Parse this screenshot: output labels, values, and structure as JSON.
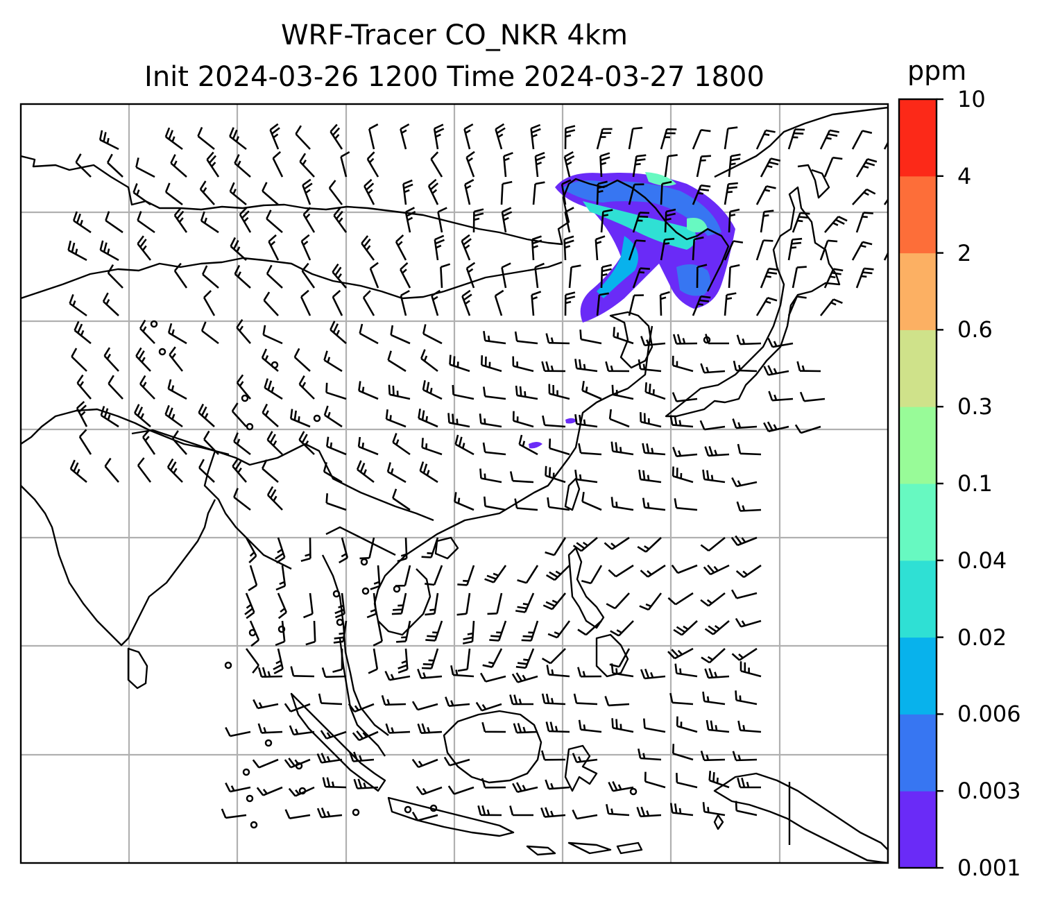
{
  "title": {
    "line1": "WRF-Tracer CO_NKR 4km",
    "line2": "Init 2024-03-26 1200 Time 2024-03-27 1800"
  },
  "colorbar": {
    "unit": "ppm",
    "levels": [
      "0.001",
      "0.003",
      "0.006",
      "0.02",
      "0.04",
      "0.1",
      "0.3",
      "0.6",
      "2",
      "4",
      "10"
    ],
    "colors": [
      "#6a2bf7",
      "#3776f2",
      "#08b2ec",
      "#2fe0d4",
      "#67f9c1",
      "#98fb98",
      "#cfe28a",
      "#fcb063",
      "#fd6e39",
      "#fc2918"
    ]
  },
  "map": {
    "gridlines": true,
    "coastline_color": "#000000",
    "gridline_color": "#b0b0b0"
  }
}
